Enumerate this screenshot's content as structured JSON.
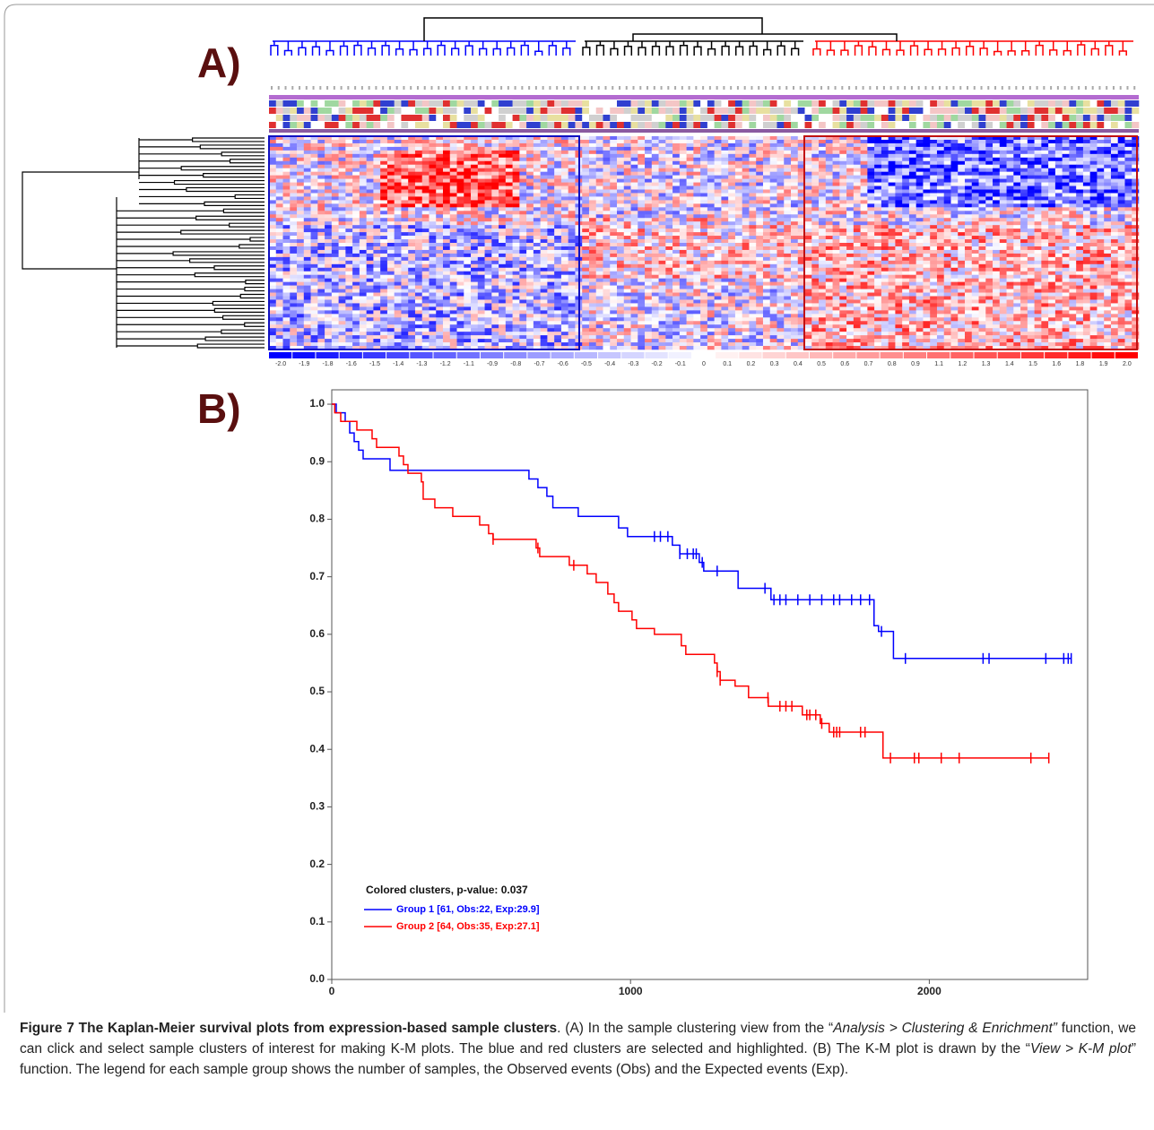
{
  "panels": {
    "a_label": "A)",
    "b_label": "B)"
  },
  "color_key": {
    "labels": [
      "-2.0",
      "-1.9",
      "-1.8",
      "-1.6",
      "-1.5",
      "-1.4",
      "-1.3",
      "-1.2",
      "-1.1",
      "-0.9",
      "-0.8",
      "-0.7",
      "-0.6",
      "-0.5",
      "-0.4",
      "-0.3",
      "-0.2",
      "-0.1",
      "0",
      "0.1",
      "0.2",
      "0.3",
      "0.4",
      "0.5",
      "0.6",
      "0.7",
      "0.8",
      "0.9",
      "1.1",
      "1.2",
      "1.3",
      "1.4",
      "1.5",
      "1.6",
      "1.8",
      "1.9",
      "2.0"
    ]
  },
  "chart_data": {
    "type": "step",
    "legend_title": "Colored clusters, p-value: 0.037",
    "xlim": [
      0,
      2530
    ],
    "ylim": [
      0,
      1.025
    ],
    "xticks": [
      0,
      1000,
      2000
    ],
    "yticks": [
      {
        "value": 0,
        "label": "0.0"
      },
      0.1,
      0.2,
      0.3,
      0.4,
      0.5,
      0.6,
      0.7,
      0.8,
      0.9,
      {
        "value": 1,
        "label": "1.0"
      }
    ],
    "series": [
      {
        "name": "Group 1 [61, Obs:22, Exp:29.9]",
        "color": "#0000ff",
        "x": [
          0,
          15,
          45,
          60,
          75,
          90,
          105,
          195,
          660,
          690,
          720,
          740,
          825,
          960,
          990,
          1140,
          1165,
          1230,
          1245,
          1360,
          1470,
          1815,
          1830,
          1880,
          2475
        ],
        "values": [
          1.0,
          0.985,
          0.97,
          0.95,
          0.935,
          0.92,
          0.905,
          0.885,
          0.87,
          0.855,
          0.84,
          0.82,
          0.805,
          0.785,
          0.77,
          0.755,
          0.74,
          0.725,
          0.71,
          0.68,
          0.66,
          0.615,
          0.605,
          0.558,
          0.558
        ],
        "censored_x": [
          1080,
          1100,
          1125,
          1165,
          1190,
          1210,
          1220,
          1240,
          1290,
          1450,
          1480,
          1500,
          1520,
          1560,
          1600,
          1640,
          1680,
          1700,
          1740,
          1770,
          1800,
          1840,
          1920,
          2180,
          2200,
          2390,
          2450,
          2465,
          2475
        ],
        "censored_y": [
          0.77,
          0.77,
          0.77,
          0.74,
          0.74,
          0.74,
          0.74,
          0.725,
          0.71,
          0.68,
          0.66,
          0.66,
          0.66,
          0.66,
          0.66,
          0.66,
          0.66,
          0.66,
          0.66,
          0.66,
          0.66,
          0.605,
          0.558,
          0.558,
          0.558,
          0.558,
          0.558,
          0.558,
          0.558
        ]
      },
      {
        "name": "Group 2 [64, Obs:35, Exp:27.1]",
        "color": "#ff0000",
        "x": [
          0,
          10,
          30,
          84,
          135,
          150,
          225,
          240,
          255,
          300,
          306,
          345,
          405,
          495,
          525,
          540,
          684,
          696,
          795,
          855,
          885,
          924,
          945,
          960,
          1005,
          1020,
          1080,
          1170,
          1185,
          1281,
          1290,
          1300,
          1350,
          1395,
          1461,
          1575,
          1635,
          1665,
          1845,
          2400
        ],
        "values": [
          1.0,
          0.985,
          0.97,
          0.955,
          0.94,
          0.925,
          0.91,
          0.895,
          0.88,
          0.865,
          0.835,
          0.82,
          0.805,
          0.79,
          0.775,
          0.765,
          0.75,
          0.735,
          0.72,
          0.705,
          0.69,
          0.67,
          0.655,
          0.64,
          0.625,
          0.61,
          0.6,
          0.58,
          0.565,
          0.55,
          0.535,
          0.52,
          0.51,
          0.49,
          0.475,
          0.46,
          0.445,
          0.43,
          0.385,
          0.385
        ],
        "censored_x": [
          540,
          690,
          810,
          1290,
          1300,
          1460,
          1500,
          1520,
          1540,
          1590,
          1600,
          1620,
          1640,
          1680,
          1690,
          1700,
          1770,
          1785,
          1870,
          1950,
          1965,
          2040,
          2100,
          2340,
          2400
        ],
        "censored_y": [
          0.765,
          0.75,
          0.72,
          0.535,
          0.52,
          0.49,
          0.475,
          0.475,
          0.475,
          0.46,
          0.46,
          0.46,
          0.445,
          0.43,
          0.43,
          0.43,
          0.43,
          0.43,
          0.385,
          0.385,
          0.385,
          0.385,
          0.385,
          0.385,
          0.385
        ]
      }
    ]
  },
  "caption": {
    "title": "Figure 7 The Kaplan-Meier survival plots from expression-based sample clusters",
    "segments": [
      {
        "text": ". (A) In the sample clustering view from the “",
        "italic": false
      },
      {
        "text": "Analysis > Clustering & Enrichment”",
        "italic": true
      },
      {
        "text": " function, we can click and select sample clusters of interest for making K-M plots. The blue and red clusters are selected and highlighted. (B) The K-M plot is drawn by the “",
        "italic": false
      },
      {
        "text": "View > K-M plot",
        "italic": true
      },
      {
        "text": "” function. The legend for each sample group shows the number of samples, the Observed events (Obs) and the Expected events (Exp).",
        "italic": false
      }
    ]
  }
}
